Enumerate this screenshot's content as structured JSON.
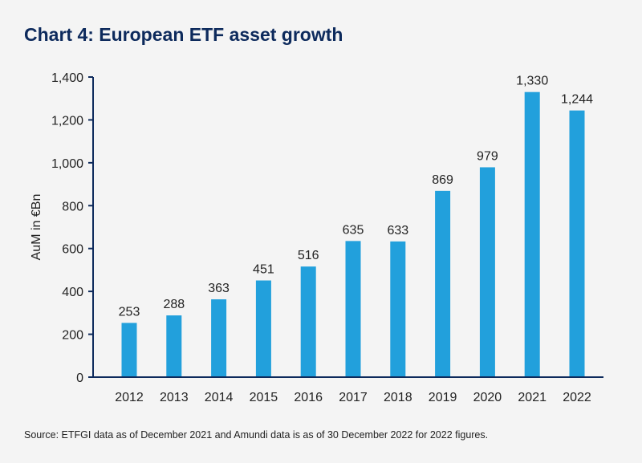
{
  "title": "Chart 4: European ETF asset growth",
  "source": "Source: ETFGI data as of December 2021 and Amundi data is as of 30 December 2022 for 2022 figures.",
  "colors": {
    "bar": "#22a0dc",
    "axis": "#0d2a5c",
    "title": "#0d2a5c",
    "background": "#f4f4f4"
  },
  "chart_data": {
    "type": "bar",
    "categories": [
      "2012",
      "2013",
      "2014",
      "2015",
      "2016",
      "2017",
      "2018",
      "2019",
      "2020",
      "2021",
      "2022"
    ],
    "values": [
      253,
      288,
      363,
      451,
      516,
      635,
      633,
      869,
      979,
      1330,
      1244
    ],
    "value_labels": [
      "253",
      "288",
      "363",
      "451",
      "516",
      "635",
      "633",
      "869",
      "979",
      "1,330",
      "1,244"
    ],
    "title": "Chart 4: European ETF asset growth",
    "xlabel": "",
    "ylabel": "AuM in €Bn",
    "ylim": [
      0,
      1400
    ],
    "yticks": [
      0,
      200,
      400,
      600,
      800,
      1000,
      1200,
      1400
    ],
    "ytick_labels": [
      "0",
      "200",
      "400",
      "600",
      "800",
      "1,000",
      "1,200",
      "1,400"
    ],
    "grid": false,
    "legend": "none"
  }
}
